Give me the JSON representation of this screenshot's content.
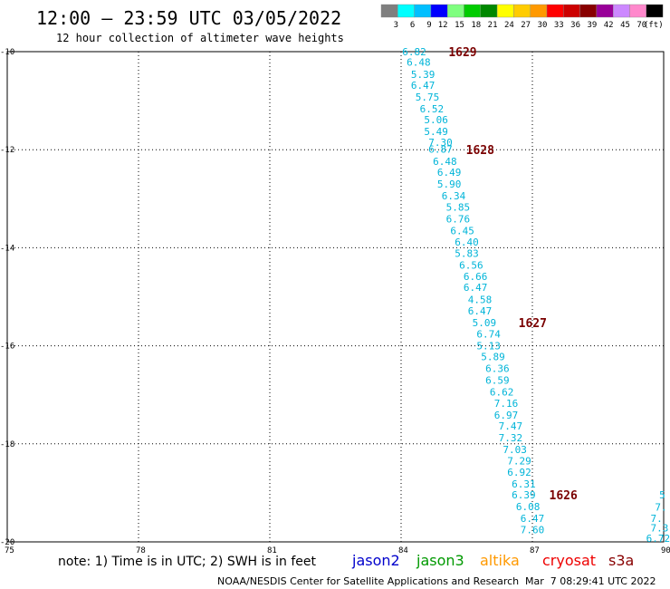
{
  "header": {
    "title": "12:00 – 23:59 UTC 03/05/2022",
    "subtitle": "12 hour collection of altimeter wave heights"
  },
  "color_scale": {
    "colors": [
      "#7f7f7f",
      "#00ffff",
      "#00bfff",
      "#0000ff",
      "#7fff7f",
      "#00cc00",
      "#008800",
      "#ffff00",
      "#ffcc00",
      "#ff9900",
      "#ff0000",
      "#cc0000",
      "#880000",
      "#990099",
      "#cc88ff",
      "#ff88cc",
      "#000000"
    ],
    "labels": [
      "3",
      "6",
      "9",
      "12",
      "15",
      "18",
      "21",
      "24",
      "27",
      "30",
      "33",
      "36",
      "39",
      "42",
      "45",
      "70",
      "(ft)"
    ]
  },
  "footer": {
    "note": "note: 1) Time is in UTC; 2) SWH is in feet",
    "satellites": [
      {
        "name": "jason2",
        "color": "#0000cc"
      },
      {
        "name": "jason3",
        "color": "#009900"
      },
      {
        "name": "altika",
        "color": "#ff9900"
      },
      {
        "name": "cryosat",
        "color": "#ee0000"
      },
      {
        "name": "s3a",
        "color": "#880000"
      }
    ],
    "credit": "NOAA/NESDIS Center for Satellite Applications and Research",
    "timestamp": "Mar  7 08:29:41 UTC 2022"
  },
  "chart_data": {
    "type": "scatter",
    "title": "12:00 – 23:59 UTC 03/05/2022",
    "subtitle": "12 hour collection of altimeter wave heights",
    "x_ticks": [
      "75",
      "78",
      "81",
      "84",
      "87",
      "90"
    ],
    "y_ticks": [
      "-10",
      "-12",
      "-14",
      "-16",
      "-18",
      "-20"
    ],
    "xlim": [
      75,
      90
    ],
    "ylim": [
      -20,
      -10
    ],
    "grid": true,
    "value_color": "#00b4d8",
    "time_color": "#7a0000",
    "series": [
      {
        "points": [
          {
            "lon": 84.3,
            "lat": -10.0,
            "swh": "6.82"
          },
          {
            "lon": 84.4,
            "lat": -10.21,
            "swh": "6.48"
          },
          {
            "lon": 84.5,
            "lat": -10.46,
            "swh": "5.39"
          },
          {
            "lon": 84.5,
            "lat": -10.68,
            "swh": "6.47"
          },
          {
            "lon": 84.6,
            "lat": -10.92,
            "swh": "5.75"
          },
          {
            "lon": 84.7,
            "lat": -11.16,
            "swh": "6.52"
          },
          {
            "lon": 84.8,
            "lat": -11.39,
            "swh": "5.06"
          },
          {
            "lon": 84.8,
            "lat": -11.63,
            "swh": "5.49"
          },
          {
            "lon": 84.9,
            "lat": -11.85,
            "swh": "7.30"
          },
          {
            "lon": 84.9,
            "lat": -11.99,
            "swh": "6.87"
          },
          {
            "lon": 85.0,
            "lat": -12.24,
            "swh": "6.48"
          },
          {
            "lon": 85.1,
            "lat": -12.46,
            "swh": "6.49"
          },
          {
            "lon": 85.1,
            "lat": -12.7,
            "swh": "5.90"
          },
          {
            "lon": 85.2,
            "lat": -12.94,
            "swh": "6.34"
          },
          {
            "lon": 85.3,
            "lat": -13.17,
            "swh": "5.85"
          },
          {
            "lon": 85.3,
            "lat": -13.41,
            "swh": "6.76"
          },
          {
            "lon": 85.4,
            "lat": -13.65,
            "swh": "6.45"
          },
          {
            "lon": 85.5,
            "lat": -13.88,
            "swh": "6.40"
          },
          {
            "lon": 85.5,
            "lat": -14.11,
            "swh": "5.83"
          },
          {
            "lon": 85.6,
            "lat": -14.35,
            "swh": "6.56"
          },
          {
            "lon": 85.7,
            "lat": -14.58,
            "swh": "6.66"
          },
          {
            "lon": 85.7,
            "lat": -14.81,
            "swh": "6.47"
          },
          {
            "lon": 85.8,
            "lat": -15.06,
            "swh": "4.58"
          },
          {
            "lon": 85.8,
            "lat": -15.29,
            "swh": "6.47"
          },
          {
            "lon": 85.9,
            "lat": -15.53,
            "swh": "5.09"
          },
          {
            "lon": 86.0,
            "lat": -15.76,
            "swh": "6.74"
          },
          {
            "lon": 86.0,
            "lat": -16.0,
            "swh": "5.13"
          },
          {
            "lon": 86.1,
            "lat": -16.22,
            "swh": "5.89"
          },
          {
            "lon": 86.2,
            "lat": -16.46,
            "swh": "6.36"
          },
          {
            "lon": 86.2,
            "lat": -16.7,
            "swh": "6.59"
          },
          {
            "lon": 86.3,
            "lat": -16.94,
            "swh": "6.62"
          },
          {
            "lon": 86.4,
            "lat": -17.17,
            "swh": "7.16"
          },
          {
            "lon": 86.4,
            "lat": -17.41,
            "swh": "6.97"
          },
          {
            "lon": 86.5,
            "lat": -17.63,
            "swh": "7.47"
          },
          {
            "lon": 86.5,
            "lat": -17.87,
            "swh": "7.32"
          },
          {
            "lon": 86.6,
            "lat": -18.11,
            "swh": "7.03"
          },
          {
            "lon": 86.7,
            "lat": -18.35,
            "swh": "7.29"
          },
          {
            "lon": 86.7,
            "lat": -18.58,
            "swh": "6.92"
          },
          {
            "lon": 86.8,
            "lat": -18.82,
            "swh": "6.31"
          },
          {
            "lon": 86.8,
            "lat": -19.04,
            "swh": "6.39"
          },
          {
            "lon": 86.9,
            "lat": -19.28,
            "swh": "6.08"
          },
          {
            "lon": 87.0,
            "lat": -19.52,
            "swh": "6.47"
          },
          {
            "lon": 87.0,
            "lat": -19.75,
            "swh": "7.60"
          }
        ]
      }
    ],
    "edge_points": [
      {
        "lon": 89.9,
        "lat": -19.04,
        "swh": "5"
      },
      {
        "lon": 89.8,
        "lat": -19.29,
        "swh": "7."
      },
      {
        "lon": 89.7,
        "lat": -19.52,
        "swh": "7."
      },
      {
        "lon": 89.7,
        "lat": -19.71,
        "swh": "7.3"
      },
      {
        "lon": 89.6,
        "lat": -19.93,
        "swh": "6.72"
      }
    ],
    "time_labels": [
      {
        "lon": 85.0,
        "lat": -10.0,
        "text": "1629"
      },
      {
        "lon": 85.4,
        "lat": -12.0,
        "text": "1628"
      },
      {
        "lon": 86.6,
        "lat": -15.53,
        "text": "1627"
      },
      {
        "lon": 87.3,
        "lat": -19.04,
        "text": "1626"
      }
    ]
  }
}
